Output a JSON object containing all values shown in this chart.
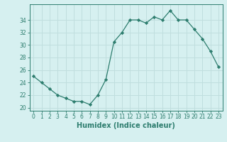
{
  "x": [
    0,
    1,
    2,
    3,
    4,
    5,
    6,
    7,
    8,
    9,
    10,
    11,
    12,
    13,
    14,
    15,
    16,
    17,
    18,
    19,
    20,
    21,
    22,
    23
  ],
  "y": [
    25.0,
    24.0,
    23.0,
    22.0,
    21.5,
    21.0,
    21.0,
    20.5,
    22.0,
    24.5,
    30.5,
    32.0,
    34.0,
    34.0,
    33.5,
    34.5,
    34.0,
    35.5,
    34.0,
    34.0,
    32.5,
    31.0,
    29.0,
    26.5
  ],
  "xlabel": "Humidex (Indice chaleur)",
  "xlim": [
    -0.5,
    23.5
  ],
  "ylim": [
    19.5,
    36.5
  ],
  "yticks": [
    20,
    22,
    24,
    26,
    28,
    30,
    32,
    34
  ],
  "xticks": [
    0,
    1,
    2,
    3,
    4,
    5,
    6,
    7,
    8,
    9,
    10,
    11,
    12,
    13,
    14,
    15,
    16,
    17,
    18,
    19,
    20,
    21,
    22,
    23
  ],
  "line_color": "#2d7d6e",
  "marker": "D",
  "markersize": 2.2,
  "linewidth": 0.9,
  "bg_color": "#d6f0f0",
  "grid_color": "#c0dede",
  "tick_fontsize": 5.5,
  "xlabel_fontsize": 7.0
}
